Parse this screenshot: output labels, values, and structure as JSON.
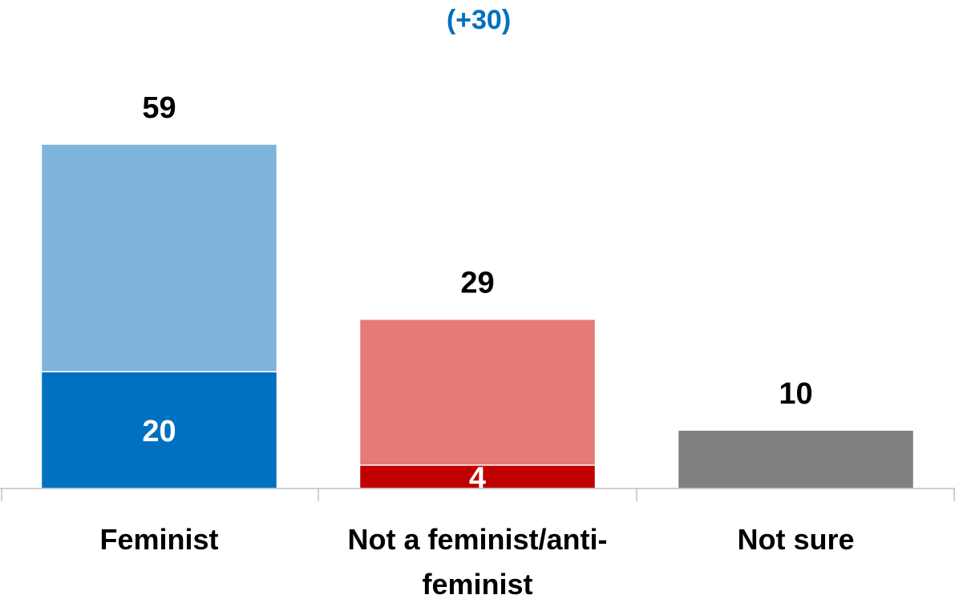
{
  "chart_data": {
    "type": "bar",
    "overlap": true,
    "annotation": "(+30)",
    "annotation_color": "#0070c0",
    "categories": [
      "Feminist",
      "Not a feminist/anti-feminist",
      "Not sure"
    ],
    "series": [
      {
        "values": [
          59,
          29,
          10
        ],
        "colors": [
          "#7fb5dd",
          "#e57a77",
          "#808080"
        ],
        "label_color": "#000000"
      },
      {
        "values": [
          20,
          4,
          null
        ],
        "colors": [
          "#0070c0",
          "#c00000",
          null
        ],
        "label_color": "#ffffff"
      }
    ]
  }
}
